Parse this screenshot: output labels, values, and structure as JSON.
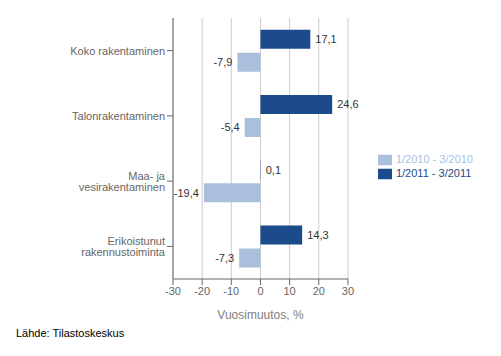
{
  "chart_data": {
    "type": "bar",
    "orientation": "horizontal",
    "categories": [
      "Koko rakentaminen",
      "Talonrakentaminen",
      "Maa- ja vesirakentaminen",
      "Erikoistunut rakennustoiminta"
    ],
    "series": [
      {
        "name": "1/2011 - 3/2011",
        "color": "#1B4B8A",
        "values": [
          17.1,
          24.6,
          0.1,
          14.3
        ],
        "value_labels": [
          "17,1",
          "24,6",
          "0,1",
          "14,3"
        ]
      },
      {
        "name": "1/2010 - 3/2010",
        "color": "#AABFDC",
        "values": [
          -7.9,
          -5.4,
          -19.4,
          -7.3
        ],
        "value_labels": [
          "-7,9",
          "-5,4",
          "-19,4",
          "-7,3"
        ]
      }
    ],
    "xlabel": "Vuosimuutos, %",
    "xlim": [
      -30,
      30
    ],
    "xticks": [
      -30,
      -20,
      -10,
      0,
      10,
      20,
      30
    ],
    "grid": true,
    "legend": "right",
    "data_labels": true,
    "annotations": [
      "Lähde: Tilastoskeskus"
    ]
  }
}
